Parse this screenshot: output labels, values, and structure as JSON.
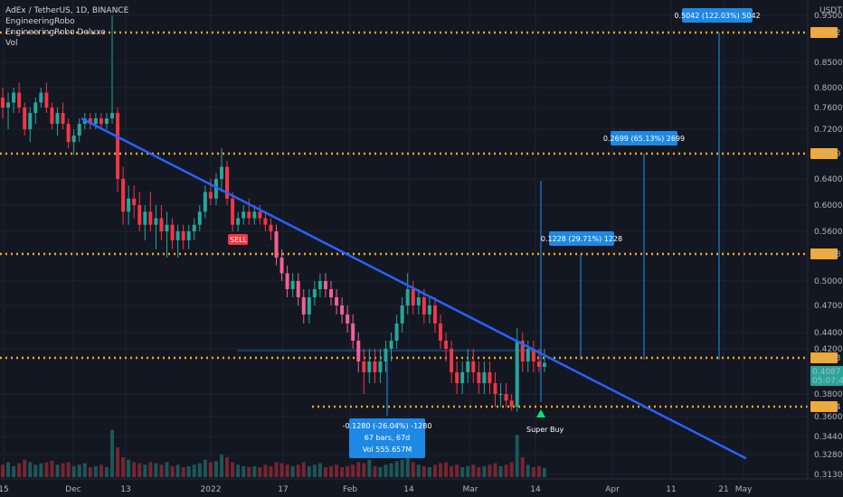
{
  "header": {
    "symbol_line": "AdEx / TetherUS, 1D, BINANCE",
    "indicators": [
      "EngineeringRobo",
      "EngineeringRobo Deluxe",
      "Vol"
    ],
    "currency": "USDT"
  },
  "chart_data": {
    "type": "candlestick",
    "x_tick_labels": [
      "15",
      "Dec",
      "13",
      "2022",
      "17",
      "Feb",
      "14",
      "Mar",
      "14",
      "Apr",
      "11",
      "21",
      "May"
    ],
    "y_tick_labels": [
      "0.3130",
      "0.3280",
      "0.3440",
      "0.3600",
      "0.3800",
      "0.4000",
      "0.4200",
      "0.4400",
      "0.4700",
      "0.5000",
      "0.5300",
      "0.5600",
      "0.6000",
      "0.6400",
      "0.6800",
      "0.7200",
      "0.7600",
      "0.8000",
      "0.8500",
      "0.9000",
      "0.9500"
    ],
    "horizontal_levels": [
      {
        "price": 0.9142,
        "label": "0.9142"
      },
      {
        "price": 0.6819,
        "label": "0.6819"
      },
      {
        "price": 0.5348,
        "label": "0.5348"
      },
      {
        "price": 0.4133,
        "label": "0.4133"
      },
      {
        "price": 0.3704,
        "label": "0.3704"
      }
    ],
    "current_price": {
      "label": "0.4087",
      "countdown": "05:07:42",
      "color": "#26a69a"
    },
    "trendline": {
      "from_price": 0.74,
      "to_price": 0.325,
      "color": "#2962ff"
    },
    "signals": [
      {
        "text": "SELL",
        "color": "#f23645"
      },
      {
        "text": "Super Buy",
        "color": "#00e676"
      }
    ],
    "measure_boxes": [
      {
        "lines": [
          "0.5042 (122.03%) 5042"
        ]
      },
      {
        "lines": [
          "0.2699 (65.13%) 2699"
        ]
      },
      {
        "lines": [
          "0.1228 (29.71%) 1228"
        ]
      },
      {
        "lines": [
          "-0.1280 (-26.04%) -1280",
          "67 bars, 67d",
          "Vol 555.657M"
        ]
      }
    ],
    "colors": {
      "background": "#131722",
      "up": "#26a69a",
      "down": "#f23645",
      "up_pink": "#f06292",
      "level": "#f9a825",
      "box": "#1e88e5",
      "grid": "#1f2330"
    },
    "candles": [
      [
        0.78,
        0.8,
        0.74,
        0.76
      ],
      [
        0.76,
        0.79,
        0.72,
        0.77
      ],
      [
        0.77,
        0.8,
        0.75,
        0.79
      ],
      [
        0.79,
        0.81,
        0.75,
        0.76
      ],
      [
        0.76,
        0.77,
        0.71,
        0.72
      ],
      [
        0.72,
        0.76,
        0.7,
        0.75
      ],
      [
        0.75,
        0.78,
        0.73,
        0.77
      ],
      [
        0.77,
        0.8,
        0.76,
        0.79
      ],
      [
        0.79,
        0.81,
        0.75,
        0.76
      ],
      [
        0.76,
        0.77,
        0.72,
        0.73
      ],
      [
        0.73,
        0.76,
        0.71,
        0.75
      ],
      [
        0.75,
        0.77,
        0.72,
        0.73
      ],
      [
        0.73,
        0.74,
        0.69,
        0.7
      ],
      [
        0.7,
        0.72,
        0.68,
        0.71
      ],
      [
        0.71,
        0.74,
        0.7,
        0.73
      ],
      [
        0.73,
        0.75,
        0.72,
        0.74
      ],
      [
        0.74,
        0.75,
        0.72,
        0.73
      ],
      [
        0.73,
        0.75,
        0.72,
        0.74
      ],
      [
        0.74,
        0.75,
        0.72,
        0.73
      ],
      [
        0.73,
        0.75,
        0.72,
        0.74
      ],
      [
        0.74,
        0.95,
        0.73,
        0.75
      ],
      [
        0.75,
        0.76,
        0.62,
        0.64
      ],
      [
        0.64,
        0.66,
        0.57,
        0.59
      ],
      [
        0.59,
        0.63,
        0.57,
        0.61
      ],
      [
        0.61,
        0.63,
        0.58,
        0.6
      ],
      [
        0.6,
        0.62,
        0.56,
        0.57
      ],
      [
        0.57,
        0.6,
        0.55,
        0.59
      ],
      [
        0.59,
        0.62,
        0.56,
        0.57
      ],
      [
        0.57,
        0.6,
        0.54,
        0.58
      ],
      [
        0.58,
        0.6,
        0.55,
        0.56
      ],
      [
        0.56,
        0.59,
        0.53,
        0.57
      ],
      [
        0.57,
        0.58,
        0.54,
        0.55
      ],
      [
        0.55,
        0.57,
        0.53,
        0.56
      ],
      [
        0.56,
        0.57,
        0.54,
        0.55
      ],
      [
        0.55,
        0.57,
        0.54,
        0.56
      ],
      [
        0.56,
        0.58,
        0.55,
        0.57
      ],
      [
        0.57,
        0.6,
        0.56,
        0.59
      ],
      [
        0.59,
        0.63,
        0.58,
        0.62
      ],
      [
        0.62,
        0.64,
        0.6,
        0.61
      ],
      [
        0.61,
        0.65,
        0.6,
        0.64
      ],
      [
        0.64,
        0.69,
        0.62,
        0.66
      ],
      [
        0.66,
        0.67,
        0.6,
        0.61
      ],
      [
        0.61,
        0.62,
        0.56,
        0.57
      ],
      [
        0.57,
        0.59,
        0.56,
        0.58
      ],
      [
        0.58,
        0.6,
        0.57,
        0.59
      ],
      [
        0.59,
        0.61,
        0.57,
        0.58
      ],
      [
        0.58,
        0.6,
        0.57,
        0.59
      ],
      [
        0.59,
        0.6,
        0.57,
        0.58
      ],
      [
        0.58,
        0.59,
        0.56,
        0.57
      ],
      [
        0.57,
        0.58,
        0.55,
        0.56
      ],
      [
        0.56,
        0.57,
        0.52,
        0.53
      ],
      [
        0.53,
        0.54,
        0.5,
        0.51
      ],
      [
        0.51,
        0.52,
        0.48,
        0.49
      ],
      [
        0.49,
        0.51,
        0.48,
        0.5
      ],
      [
        0.5,
        0.51,
        0.47,
        0.48
      ],
      [
        0.48,
        0.49,
        0.45,
        0.46
      ],
      [
        0.46,
        0.49,
        0.45,
        0.48
      ],
      [
        0.48,
        0.5,
        0.47,
        0.49
      ],
      [
        0.49,
        0.51,
        0.48,
        0.5
      ],
      [
        0.5,
        0.51,
        0.48,
        0.49
      ],
      [
        0.49,
        0.5,
        0.47,
        0.48
      ],
      [
        0.48,
        0.49,
        0.46,
        0.47
      ],
      [
        0.47,
        0.48,
        0.45,
        0.46
      ],
      [
        0.46,
        0.47,
        0.44,
        0.45
      ],
      [
        0.45,
        0.46,
        0.42,
        0.43
      ],
      [
        0.43,
        0.44,
        0.4,
        0.41
      ],
      [
        0.41,
        0.42,
        0.38,
        0.4
      ],
      [
        0.4,
        0.42,
        0.39,
        0.41
      ],
      [
        0.41,
        0.42,
        0.39,
        0.4
      ],
      [
        0.4,
        0.42,
        0.39,
        0.41
      ],
      [
        0.41,
        0.43,
        0.4,
        0.42
      ],
      [
        0.42,
        0.44,
        0.41,
        0.43
      ],
      [
        0.43,
        0.46,
        0.42,
        0.45
      ],
      [
        0.45,
        0.48,
        0.44,
        0.47
      ],
      [
        0.47,
        0.51,
        0.46,
        0.49
      ],
      [
        0.49,
        0.5,
        0.46,
        0.47
      ],
      [
        0.47,
        0.49,
        0.46,
        0.48
      ],
      [
        0.48,
        0.49,
        0.45,
        0.46
      ],
      [
        0.46,
        0.48,
        0.45,
        0.47
      ],
      [
        0.47,
        0.48,
        0.44,
        0.45
      ],
      [
        0.45,
        0.46,
        0.42,
        0.43
      ],
      [
        0.43,
        0.44,
        0.41,
        0.42
      ],
      [
        0.42,
        0.43,
        0.39,
        0.4
      ],
      [
        0.4,
        0.41,
        0.38,
        0.39
      ],
      [
        0.39,
        0.41,
        0.38,
        0.4
      ],
      [
        0.4,
        0.42,
        0.39,
        0.41
      ],
      [
        0.41,
        0.42,
        0.39,
        0.4
      ],
      [
        0.4,
        0.41,
        0.38,
        0.39
      ],
      [
        0.39,
        0.41,
        0.38,
        0.4
      ],
      [
        0.4,
        0.41,
        0.38,
        0.39
      ],
      [
        0.39,
        0.4,
        0.37,
        0.38
      ],
      [
        0.38,
        0.39,
        0.37,
        0.38
      ],
      [
        0.38,
        0.39,
        0.37,
        0.375
      ],
      [
        0.375,
        0.38,
        0.366,
        0.37
      ],
      [
        0.37,
        0.445,
        0.365,
        0.43
      ],
      [
        0.43,
        0.44,
        0.4,
        0.41
      ],
      [
        0.41,
        0.43,
        0.4,
        0.42
      ],
      [
        0.42,
        0.43,
        0.4,
        0.41
      ],
      [
        0.41,
        0.42,
        0.4,
        0.405
      ],
      [
        0.405,
        0.42,
        0.4,
        0.4087
      ]
    ],
    "volumes": [
      0.25,
      0.3,
      0.22,
      0.28,
      0.35,
      0.3,
      0.25,
      0.28,
      0.3,
      0.33,
      0.25,
      0.28,
      0.3,
      0.22,
      0.25,
      0.28,
      0.2,
      0.22,
      0.25,
      0.2,
      0.95,
      0.6,
      0.4,
      0.35,
      0.3,
      0.28,
      0.25,
      0.3,
      0.28,
      0.25,
      0.3,
      0.22,
      0.25,
      0.2,
      0.22,
      0.25,
      0.28,
      0.35,
      0.3,
      0.32,
      0.45,
      0.4,
      0.3,
      0.25,
      0.22,
      0.2,
      0.22,
      0.2,
      0.25,
      0.22,
      0.3,
      0.28,
      0.25,
      0.22,
      0.25,
      0.3,
      0.22,
      0.25,
      0.28,
      0.2,
      0.22,
      0.25,
      0.2,
      0.22,
      0.25,
      0.3,
      0.28,
      0.35,
      0.22,
      0.2,
      0.25,
      0.28,
      0.32,
      0.35,
      0.4,
      0.3,
      0.25,
      0.22,
      0.2,
      0.25,
      0.28,
      0.3,
      0.22,
      0.25,
      0.2,
      0.22,
      0.25,
      0.2,
      0.22,
      0.25,
      0.28,
      0.22,
      0.25,
      0.3,
      0.85,
      0.4,
      0.25,
      0.2,
      0.22,
      0.18
    ]
  }
}
